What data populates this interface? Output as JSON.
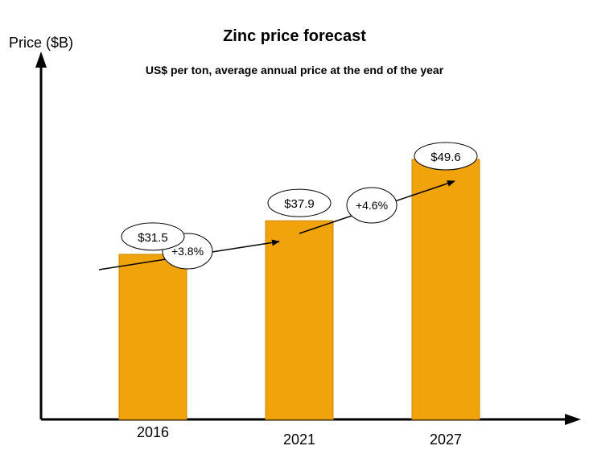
{
  "chart_data": {
    "type": "bar",
    "title": "Zinc price forecast",
    "subtitle": "US$ per ton, average annual price at the end of the year",
    "ylabel": "Price ($B)",
    "xlabel": "",
    "categories": [
      "2016",
      "2021",
      "2027"
    ],
    "values": [
      31.5,
      37.9,
      49.6
    ],
    "data_labels": [
      "$31.5",
      "$37.9",
      "$49.6"
    ],
    "ylim": [
      0,
      80
    ],
    "grid": false,
    "bar_color": "#f0a30a",
    "annotations": [
      {
        "text": "+3.8%",
        "from": "2016",
        "to": "2021"
      },
      {
        "text": "+4.6%",
        "from": "2021",
        "to": "2027"
      }
    ]
  }
}
